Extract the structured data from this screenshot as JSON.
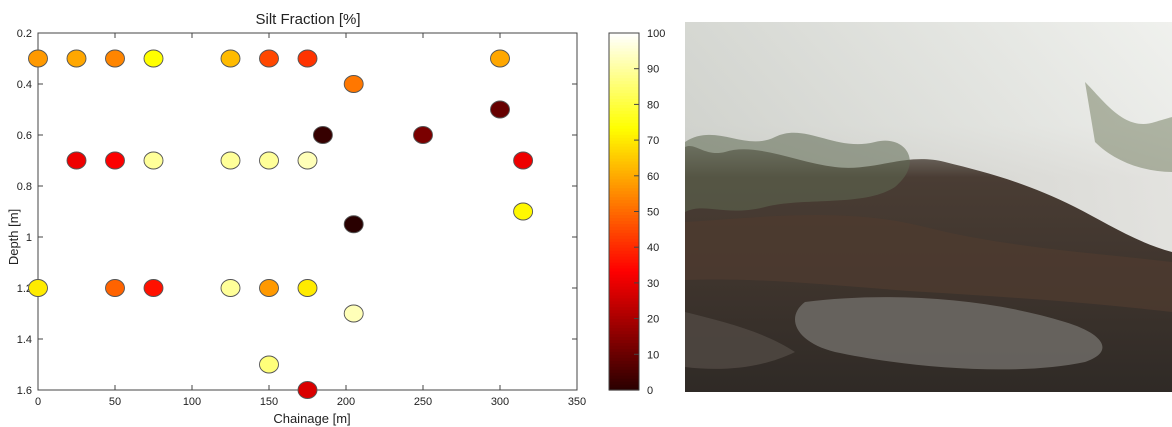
{
  "chart_data": {
    "type": "scatter",
    "title": "Silt Fraction [%]",
    "xlabel": "Chainage [m]",
    "ylabel": "Depth [m]",
    "xlim": [
      0,
      350
    ],
    "ylim": [
      0.2,
      1.6
    ],
    "y_reversed": true,
    "xticks": [
      0,
      50,
      100,
      150,
      200,
      250,
      300,
      350
    ],
    "yticks": [
      0.2,
      0.4,
      0.6,
      0.8,
      1,
      1.2,
      1.4,
      1.6
    ],
    "grid": false,
    "colorbar": {
      "range": [
        0,
        100
      ],
      "ticks": [
        0,
        10,
        20,
        30,
        40,
        50,
        60,
        70,
        80,
        90,
        100
      ],
      "colormap": "hot"
    },
    "points": [
      {
        "x": 0,
        "y": 0.3,
        "value": 60
      },
      {
        "x": 25,
        "y": 0.3,
        "value": 62
      },
      {
        "x": 50,
        "y": 0.3,
        "value": 57
      },
      {
        "x": 75,
        "y": 0.3,
        "value": 75
      },
      {
        "x": 125,
        "y": 0.3,
        "value": 65
      },
      {
        "x": 150,
        "y": 0.3,
        "value": 48
      },
      {
        "x": 175,
        "y": 0.3,
        "value": 45
      },
      {
        "x": 300,
        "y": 0.3,
        "value": 62
      },
      {
        "x": 205,
        "y": 0.4,
        "value": 55
      },
      {
        "x": 300,
        "y": 0.5,
        "value": 15
      },
      {
        "x": 185,
        "y": 0.6,
        "value": 8
      },
      {
        "x": 250,
        "y": 0.6,
        "value": 18
      },
      {
        "x": 25,
        "y": 0.7,
        "value": 35
      },
      {
        "x": 50,
        "y": 0.7,
        "value": 37
      },
      {
        "x": 75,
        "y": 0.7,
        "value": 90
      },
      {
        "x": 125,
        "y": 0.7,
        "value": 90
      },
      {
        "x": 150,
        "y": 0.7,
        "value": 90
      },
      {
        "x": 175,
        "y": 0.7,
        "value": 93
      },
      {
        "x": 315,
        "y": 0.7,
        "value": 35
      },
      {
        "x": 315,
        "y": 0.9,
        "value": 74
      },
      {
        "x": 205,
        "y": 0.95,
        "value": 6
      },
      {
        "x": 0,
        "y": 1.2,
        "value": 72
      },
      {
        "x": 50,
        "y": 1.2,
        "value": 52
      },
      {
        "x": 75,
        "y": 1.2,
        "value": 40
      },
      {
        "x": 125,
        "y": 1.2,
        "value": 90
      },
      {
        "x": 150,
        "y": 1.2,
        "value": 60
      },
      {
        "x": 175,
        "y": 1.2,
        "value": 72
      },
      {
        "x": 205,
        "y": 1.3,
        "value": 93
      },
      {
        "x": 150,
        "y": 1.5,
        "value": 87
      },
      {
        "x": 175,
        "y": 1.6,
        "value": 32
      }
    ]
  }
}
